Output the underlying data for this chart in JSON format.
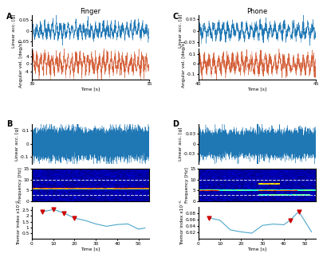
{
  "title_A": "Finger",
  "title_C": "Phone",
  "label_A": "A",
  "label_B": "B",
  "label_C": "C",
  "label_D": "D",
  "panel_A": {
    "linear_ylim": [
      -0.07,
      0.07
    ],
    "linear_yticks": [
      -0.05,
      0,
      0.05
    ],
    "angular_ylim": [
      -8,
      8
    ],
    "angular_yticks": [
      -4,
      0,
      4
    ],
    "xlim": [
      30,
      35
    ],
    "xticks": [
      30,
      35
    ],
    "xlabel": "Time [s]",
    "linear_ylabel": "Linear acc. [g]",
    "angular_ylabel": "Angular vel. [deg/s]"
  },
  "panel_C": {
    "linear_ylim": [
      -0.04,
      0.04
    ],
    "linear_yticks": [
      -0.03,
      0,
      0.03
    ],
    "angular_ylim": [
      -0.15,
      0.15
    ],
    "angular_yticks": [
      -0.1,
      0,
      0.1
    ],
    "xlim": [
      40,
      45
    ],
    "xticks": [
      40,
      45
    ],
    "xlabel": "Time [s]",
    "linear_ylabel": "Linear acc. [g]",
    "angular_ylabel": "Angular vel. [deg/s]"
  },
  "panel_B": {
    "linear_ylim": [
      -0.15,
      0.15
    ],
    "linear_yticks": [
      -0.1,
      0,
      0.1
    ],
    "linear_ylabel": "Linear acc. [g]",
    "freq_ylim": [
      0,
      15
    ],
    "freq_yticks": [
      0,
      5,
      10,
      15
    ],
    "freq_ylabel": "Frequency [Hz]",
    "tremor_ylim": [
      0,
      2.8
    ],
    "tremor_yticks": [
      0.5,
      1.0,
      1.5,
      2.0,
      2.5
    ],
    "tremor_ylabel": "Tremor index x10⁻⁶",
    "xlim": [
      0,
      55
    ],
    "xticks": [
      0,
      10,
      20,
      30,
      40,
      50
    ],
    "xlabel": "Time [s]",
    "dashed_freq_lines": [
      3,
      10
    ]
  },
  "panel_D": {
    "linear_ylim": [
      -0.06,
      0.06
    ],
    "linear_yticks": [
      -0.03,
      0,
      0.03
    ],
    "linear_ylabel": "Linear acc. [g]",
    "freq_ylim": [
      0,
      15
    ],
    "freq_yticks": [
      0,
      5,
      10,
      15
    ],
    "freq_ylabel": "Frequency [Hz]",
    "tremor_ylim": [
      0,
      0.1
    ],
    "tremor_yticks": [
      0.02,
      0.04,
      0.06,
      0.08
    ],
    "tremor_ylabel": "Tremor index x10⁻⁶",
    "xlim": [
      0,
      55
    ],
    "xticks": [
      0,
      10,
      20,
      30,
      40,
      50
    ],
    "xlabel": "Time [s]",
    "dashed_freq_lines": [
      3,
      10
    ]
  },
  "colors": {
    "blue_signal": "#1f77b4",
    "blue_light": "#5baee0",
    "orange_signal": "#d4603a",
    "red_marker": "#cc0000",
    "line_color": "#4da6cc"
  },
  "seed": 42
}
